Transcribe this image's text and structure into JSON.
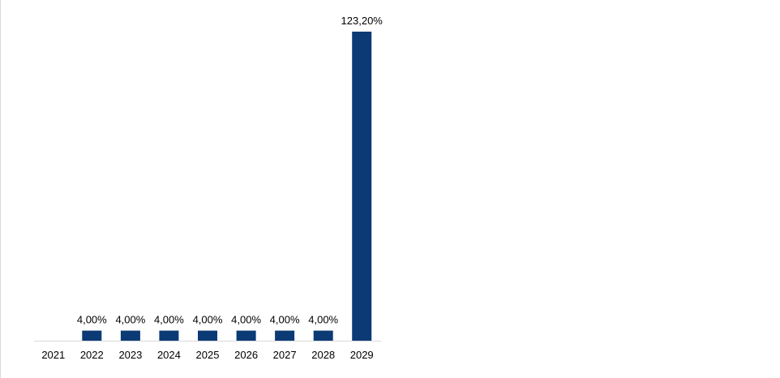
{
  "chart_data": {
    "type": "bar",
    "title": "",
    "xlabel": "",
    "ylabel": "",
    "categories": [
      "2021",
      "2022",
      "2023",
      "2024",
      "2025",
      "2026",
      "2027",
      "2028",
      "2029"
    ],
    "values": [
      null,
      4.0,
      4.0,
      4.0,
      4.0,
      4.0,
      4.0,
      4.0,
      123.2
    ],
    "data_labels": [
      "",
      "4,00%",
      "4,00%",
      "4,00%",
      "4,00%",
      "4,00%",
      "4,00%",
      "4,00%",
      "123,20%"
    ],
    "ylim": [
      0,
      123.2
    ],
    "grid": false,
    "legend": "none",
    "bar_color": "#0b3a75",
    "axis_color": "#d9d9d9"
  }
}
